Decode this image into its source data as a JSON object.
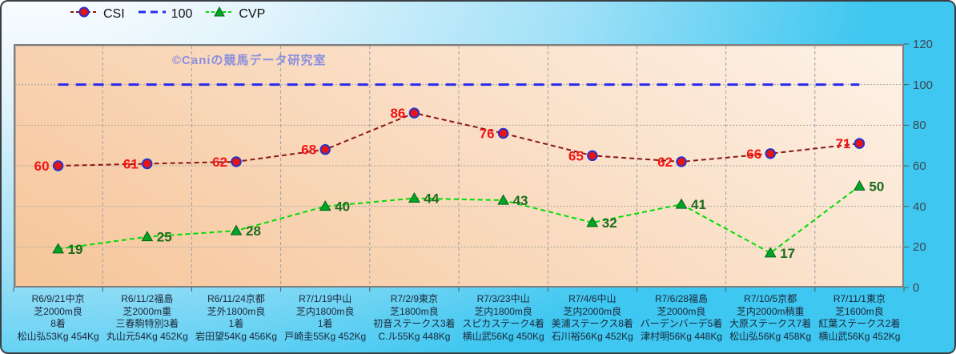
{
  "watermark": "©Caniの競馬データ研究室",
  "colors": {
    "background_top": "#f2fafe",
    "background_bottom": "#3ec7f0",
    "plot_bg_dark": "#f6c599",
    "plot_bg_light": "#fdf2e7",
    "grid": "#aaa69e",
    "axis_text": "#3d4852",
    "x_label_text": "#1b2538",
    "watermark_text": "#8a8fe0"
  },
  "chart_data": {
    "type": "line",
    "title": "",
    "legend_position": "top",
    "gridlines": {
      "horizontal": true,
      "vertical": true
    },
    "y_axis": {
      "side": "right",
      "min": 0,
      "max": 120,
      "tick_step": 20,
      "ticks": [
        0,
        20,
        40,
        60,
        80,
        100,
        120
      ]
    },
    "x_axis": {
      "labels": [
        [
          "R6/9/21中京",
          "芝2000m良",
          "8着",
          "松山弘53Kg 454Kg"
        ],
        [
          "R6/11/2福島",
          "芝2000m重",
          "三春駒特別3着",
          "丸山元54Kg 452Kg"
        ],
        [
          "R6/11/24京都",
          "芝外1800m良",
          "1着",
          "岩田望54Kg 456Kg"
        ],
        [
          "R7/1/19中山",
          "芝内1800m良",
          "1着",
          "戸崎圭55Kg 452Kg"
        ],
        [
          "R7/2/9東京",
          "芝1800m良",
          "初音ステークス3着",
          "C.ル55Kg 448Kg"
        ],
        [
          "R7/3/23中山",
          "芝内1800m良",
          "スピカステーク4着",
          "横山武56Kg 450Kg"
        ],
        [
          "R7/4/6中山",
          "芝内2000m良",
          "美浦ステークス8着",
          "石川裕56Kg 452Kg"
        ],
        [
          "R7/6/28福島",
          "芝2000m良",
          "バーデンバーデ5着",
          "津村明56Kg 448Kg"
        ],
        [
          "R7/10/5京都",
          "芝内2000m稍重",
          "大原ステークス7着",
          "松山弘56Kg 458Kg"
        ],
        [
          "R7/11/1東京",
          "芝1600m良",
          "紅葉ステークス2着",
          "横山武56Kg 452Kg"
        ]
      ]
    },
    "series": [
      {
        "name": "CSI",
        "values": [
          60,
          61,
          62,
          68,
          86,
          76,
          65,
          62,
          66,
          71
        ],
        "line_color": "#8b1616",
        "line_dash": "6 4",
        "line_width": 2,
        "marker": "circle",
        "marker_fill": "#e81414",
        "marker_stroke": "#2433cc",
        "label_color": "#f41414",
        "label_side": "left"
      },
      {
        "name": "100",
        "constant": 100,
        "line_color": "#2a2aee",
        "line_dash": "13 9",
        "line_width": 3
      },
      {
        "name": "CVP",
        "values": [
          19,
          25,
          28,
          40,
          44,
          43,
          32,
          41,
          17,
          50
        ],
        "line_color": "#00dc00",
        "line_dash": "6 4",
        "line_width": 2,
        "marker": "triangle",
        "marker_fill": "#00a428",
        "marker_stroke": "#006414",
        "label_color": "#1d6b1d",
        "label_side": "right"
      }
    ]
  }
}
